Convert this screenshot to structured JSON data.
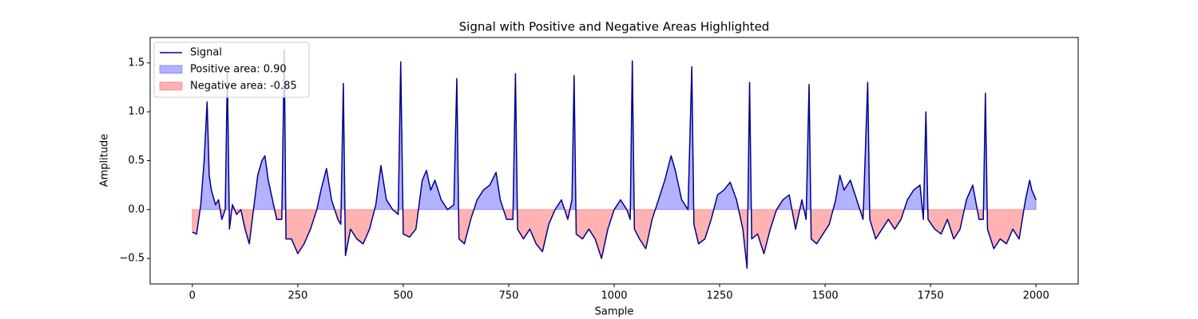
{
  "chart_data": {
    "type": "line",
    "title": "Signal with Positive and Negative Areas Highlighted",
    "xlabel": "Sample",
    "ylabel": "Amplitude",
    "xlim": [
      -100,
      2100
    ],
    "ylim": [
      -0.76,
      1.76
    ],
    "xticks": [
      0,
      250,
      500,
      750,
      1000,
      1250,
      1500,
      1750,
      2000
    ],
    "yticks": [
      {
        "value": -0.5,
        "label": "−0.5"
      },
      {
        "value": 0,
        "label": "0.0"
      },
      {
        "value": 0.5,
        "label": "0.5"
      },
      {
        "value": 1,
        "label": "1.0"
      },
      {
        "value": 1.5,
        "label": "1.5"
      }
    ],
    "legend": "upper left",
    "x": [
      0,
      10,
      20,
      28,
      35,
      40,
      45,
      55,
      62,
      70,
      78,
      83,
      88,
      95,
      105,
      115,
      125,
      135,
      145,
      155,
      165,
      172,
      180,
      190,
      200,
      212,
      218,
      222,
      235,
      250,
      265,
      280,
      295,
      305,
      318,
      330,
      345,
      352,
      358,
      363,
      375,
      390,
      405,
      420,
      435,
      447,
      460,
      475,
      488,
      494,
      500,
      515,
      530,
      545,
      555,
      565,
      575,
      590,
      605,
      620,
      627,
      632,
      645,
      660,
      675,
      690,
      705,
      720,
      730,
      745,
      760,
      766,
      771,
      785,
      800,
      815,
      830,
      845,
      860,
      875,
      890,
      900,
      905,
      910,
      925,
      940,
      955,
      970,
      985,
      1000,
      1015,
      1030,
      1038,
      1043,
      1048,
      1060,
      1075,
      1090,
      1105,
      1120,
      1135,
      1145,
      1160,
      1175,
      1184,
      1189,
      1200,
      1215,
      1230,
      1245,
      1260,
      1275,
      1290,
      1305,
      1315,
      1321,
      1326,
      1340,
      1355,
      1370,
      1385,
      1400,
      1415,
      1430,
      1445,
      1455,
      1462,
      1467,
      1480,
      1495,
      1510,
      1525,
      1535,
      1545,
      1560,
      1575,
      1590,
      1601,
      1606,
      1620,
      1635,
      1650,
      1665,
      1680,
      1695,
      1710,
      1725,
      1733,
      1739,
      1744,
      1760,
      1775,
      1790,
      1805,
      1820,
      1835,
      1850,
      1865,
      1875,
      1880,
      1885,
      1900,
      1915,
      1930,
      1945,
      1960,
      1975,
      1985,
      1990,
      2000
    ],
    "series": [
      {
        "name": "Signal",
        "color": "#00008b",
        "values": [
          -0.23,
          -0.25,
          0.05,
          0.5,
          1.1,
          0.35,
          0.2,
          0.05,
          0.1,
          -0.1,
          0.0,
          1.4,
          -0.2,
          0.05,
          -0.05,
          0.0,
          -0.2,
          -0.35,
          0.0,
          0.35,
          0.5,
          0.55,
          0.3,
          0.1,
          -0.1,
          -0.1,
          1.63,
          -0.3,
          -0.3,
          -0.45,
          -0.35,
          -0.2,
          0.0,
          0.2,
          0.42,
          0.1,
          -0.1,
          -0.15,
          1.29,
          -0.47,
          -0.2,
          -0.3,
          -0.35,
          -0.2,
          0.05,
          0.45,
          0.1,
          0.0,
          -0.05,
          1.51,
          -0.25,
          -0.28,
          -0.2,
          0.3,
          0.4,
          0.2,
          0.3,
          0.1,
          0.0,
          0.05,
          1.34,
          -0.3,
          -0.35,
          -0.1,
          0.1,
          0.2,
          0.25,
          0.38,
          0.1,
          -0.1,
          -0.1,
          1.39,
          -0.2,
          -0.3,
          -0.2,
          -0.35,
          -0.43,
          -0.15,
          0.0,
          0.1,
          -0.1,
          0.1,
          1.37,
          -0.25,
          -0.3,
          -0.2,
          -0.3,
          -0.5,
          -0.2,
          0.0,
          0.1,
          0.0,
          -0.1,
          1.52,
          -0.2,
          -0.3,
          -0.4,
          -0.1,
          0.1,
          0.3,
          0.55,
          0.4,
          0.1,
          0.0,
          1.46,
          -0.15,
          -0.35,
          -0.3,
          -0.1,
          0.15,
          0.2,
          0.28,
          0.1,
          -0.2,
          -0.6,
          1.3,
          -0.3,
          -0.25,
          -0.45,
          -0.2,
          0.0,
          0.1,
          0.15,
          -0.2,
          0.1,
          -0.1,
          1.28,
          -0.3,
          -0.35,
          -0.25,
          -0.15,
          0.1,
          0.35,
          0.2,
          0.3,
          0.1,
          -0.1,
          1.3,
          -0.1,
          -0.3,
          -0.2,
          -0.1,
          -0.2,
          -0.1,
          0.1,
          0.2,
          0.25,
          -0.1,
          1.0,
          -0.1,
          -0.2,
          -0.25,
          -0.1,
          -0.3,
          -0.2,
          0.1,
          0.25,
          -0.1,
          -0.1,
          1.19,
          -0.2,
          -0.4,
          -0.3,
          -0.35,
          -0.2,
          -0.3,
          0.1,
          0.3,
          0.2,
          0.1
        ]
      }
    ],
    "fills": [
      {
        "name": "Positive area: 0.90",
        "color": "#0000ff"
      },
      {
        "name": "Negative area: -0.85",
        "color": "#ff0000"
      }
    ]
  }
}
